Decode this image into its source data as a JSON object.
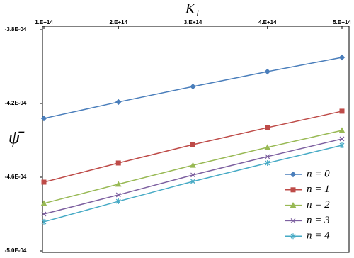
{
  "chart_data": {
    "type": "line",
    "xlabel": "K₁",
    "ylabel": "ψ̄",
    "x": [
      100000000000000,
      200000000000000,
      300000000000000,
      400000000000000,
      500000000000000
    ],
    "xlim": [
      100000000000000,
      500000000000000
    ],
    "xticks": [
      {
        "value": 100000000000000,
        "label": "1.E+14"
      },
      {
        "value": 200000000000000,
        "label": "2.E+14"
      },
      {
        "value": 300000000000000,
        "label": "3.E+14"
      },
      {
        "value": 400000000000000,
        "label": "4.E+14"
      },
      {
        "value": 500000000000000,
        "label": "5.E+14"
      }
    ],
    "ylim": [
      -0.0005,
      -0.00038
    ],
    "yticks": [
      {
        "value": -0.0005,
        "label": "-5.0E-04"
      },
      {
        "value": -0.00046,
        "label": "-4.6E-04"
      },
      {
        "value": -0.00042,
        "label": "-4.2E-04"
      },
      {
        "value": -0.00038,
        "label": "-3.8E-04"
      }
    ],
    "legend": "lower right",
    "series": [
      {
        "name": "n = 0",
        "color": "#4a7ebb",
        "marker": "diamond",
        "values": [
          -0.0004281,
          -0.0004192,
          -0.0004108,
          -0.0004027,
          -0.000395
        ]
      },
      {
        "name": "n = 1",
        "color": "#be4b48",
        "marker": "square",
        "values": [
          -0.0004627,
          -0.0004523,
          -0.0004423,
          -0.0004331,
          -0.0004242
        ]
      },
      {
        "name": "n = 2",
        "color": "#98b954",
        "marker": "triangle",
        "values": [
          -0.0004742,
          -0.0004638,
          -0.0004535,
          -0.0004438,
          -0.0004346
        ]
      },
      {
        "name": "n = 3",
        "color": "#7d60a0",
        "marker": "x",
        "values": [
          -0.00048,
          -0.0004696,
          -0.0004588,
          -0.0004488,
          -0.0004392
        ]
      },
      {
        "name": "n = 4",
        "color": "#46aac5",
        "marker": "star",
        "values": [
          -0.0004842,
          -0.0004731,
          -0.0004623,
          -0.0004523,
          -0.0004427
        ]
      }
    ]
  }
}
